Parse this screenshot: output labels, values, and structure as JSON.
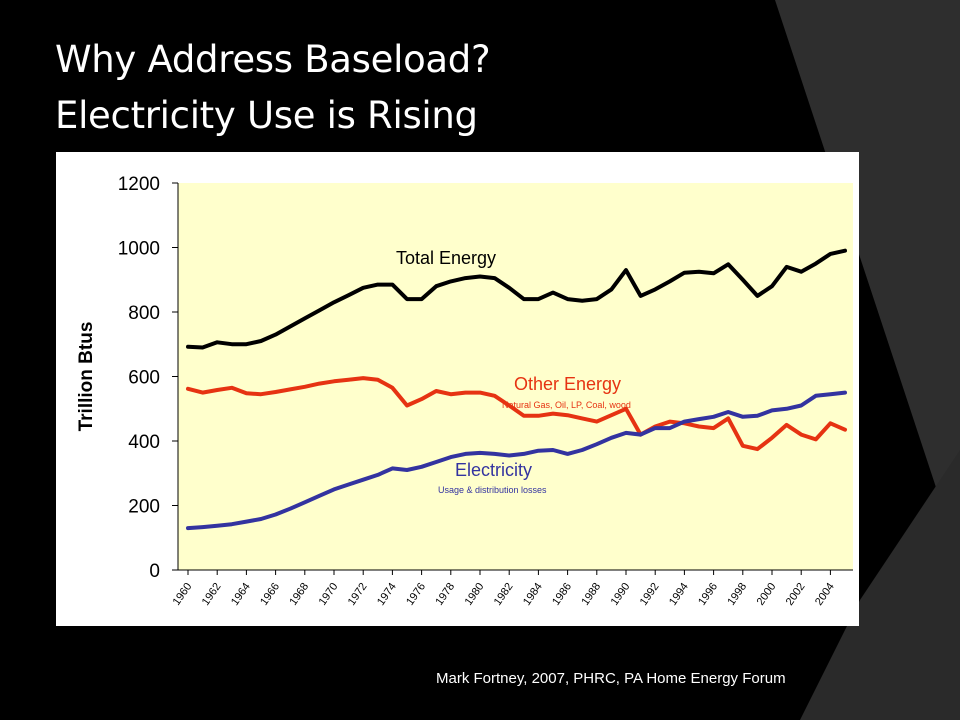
{
  "slide": {
    "title_line1": "Why Address Baseload?",
    "title_line2": "Electricity Use is Rising",
    "citation": "Mark Fortney, 2007, PHRC, PA Home Energy Forum",
    "background_color": "#000000",
    "accent_band_color": "#3a3a3a"
  },
  "chart_data": {
    "type": "line",
    "title": "",
    "xlabel": "",
    "ylabel": "Trillion Btus",
    "xlim": [
      1960,
      2005
    ],
    "ylim": [
      0,
      1200
    ],
    "yticks": [
      0,
      200,
      400,
      600,
      800,
      1000,
      1200
    ],
    "xticks": [
      "1960",
      "1962",
      "1964",
      "1966",
      "1968",
      "1970",
      "1972",
      "1974",
      "1976",
      "1978",
      "1980",
      "1982",
      "1984",
      "1986",
      "1988",
      "1990",
      "1992",
      "1994",
      "1996",
      "1998",
      "2000",
      "2002",
      "2004"
    ],
    "grid": false,
    "plot_background": "#ffffcc",
    "series": [
      {
        "name": "Total Energy",
        "color": "#000000",
        "label_position": "upper-left",
        "x": [
          1960,
          1961,
          1962,
          1963,
          1964,
          1965,
          1966,
          1967,
          1968,
          1969,
          1970,
          1971,
          1972,
          1973,
          1974,
          1975,
          1976,
          1977,
          1978,
          1979,
          1980,
          1981,
          1982,
          1983,
          1984,
          1985,
          1986,
          1987,
          1988,
          1989,
          1990,
          1991,
          1992,
          1993,
          1994,
          1995,
          1996,
          1997,
          1998,
          1999,
          2000,
          2001,
          2002,
          2003,
          2004,
          2005
        ],
        "y": [
          692,
          690,
          706,
          700,
          700,
          710,
          730,
          755,
          780,
          805,
          830,
          852,
          875,
          885,
          885,
          840,
          840,
          880,
          895,
          905,
          910,
          905,
          875,
          840,
          840,
          860,
          840,
          835,
          840,
          870,
          930,
          850,
          870,
          895,
          922,
          925,
          920,
          948,
          900,
          850,
          880,
          940,
          925,
          950,
          980,
          990
        ]
      },
      {
        "name": "Other Energy",
        "subtitle": "Natural Gas, Oil, LP, Coal, wood",
        "color": "#e63312",
        "label_position": "center",
        "x": [
          1960,
          1961,
          1962,
          1963,
          1964,
          1965,
          1966,
          1967,
          1968,
          1969,
          1970,
          1971,
          1972,
          1973,
          1974,
          1975,
          1976,
          1977,
          1978,
          1979,
          1980,
          1981,
          1982,
          1983,
          1984,
          1985,
          1986,
          1987,
          1988,
          1989,
          1990,
          1991,
          1992,
          1993,
          1994,
          1995,
          1996,
          1997,
          1998,
          1999,
          2000,
          2001,
          2002,
          2003,
          2004,
          2005
        ],
        "y": [
          562,
          550,
          558,
          565,
          548,
          545,
          552,
          560,
          568,
          578,
          585,
          590,
          595,
          590,
          565,
          510,
          530,
          555,
          545,
          550,
          550,
          540,
          510,
          478,
          478,
          485,
          480,
          470,
          460,
          480,
          500,
          420,
          445,
          460,
          455,
          445,
          440,
          470,
          385,
          375,
          410,
          450,
          420,
          405,
          455,
          435
        ]
      },
      {
        "name": "Electricity",
        "subtitle": "Usage & distribution losses",
        "color": "#3333a0",
        "label_position": "lower-center",
        "x": [
          1960,
          1961,
          1962,
          1963,
          1964,
          1965,
          1966,
          1967,
          1968,
          1969,
          1970,
          1971,
          1972,
          1973,
          1974,
          1975,
          1976,
          1977,
          1978,
          1979,
          1980,
          1981,
          1982,
          1983,
          1984,
          1985,
          1986,
          1987,
          1988,
          1989,
          1990,
          1991,
          1992,
          1993,
          1994,
          1995,
          1996,
          1997,
          1998,
          1999,
          2000,
          2001,
          2002,
          2003,
          2004,
          2005
        ],
        "y": [
          130,
          133,
          137,
          142,
          150,
          158,
          172,
          190,
          210,
          230,
          250,
          265,
          280,
          295,
          315,
          310,
          320,
          335,
          350,
          360,
          363,
          360,
          355,
          360,
          370,
          372,
          360,
          372,
          390,
          410,
          425,
          420,
          440,
          440,
          460,
          468,
          475,
          490,
          475,
          478,
          495,
          500,
          510,
          540,
          545,
          550
        ]
      }
    ]
  }
}
